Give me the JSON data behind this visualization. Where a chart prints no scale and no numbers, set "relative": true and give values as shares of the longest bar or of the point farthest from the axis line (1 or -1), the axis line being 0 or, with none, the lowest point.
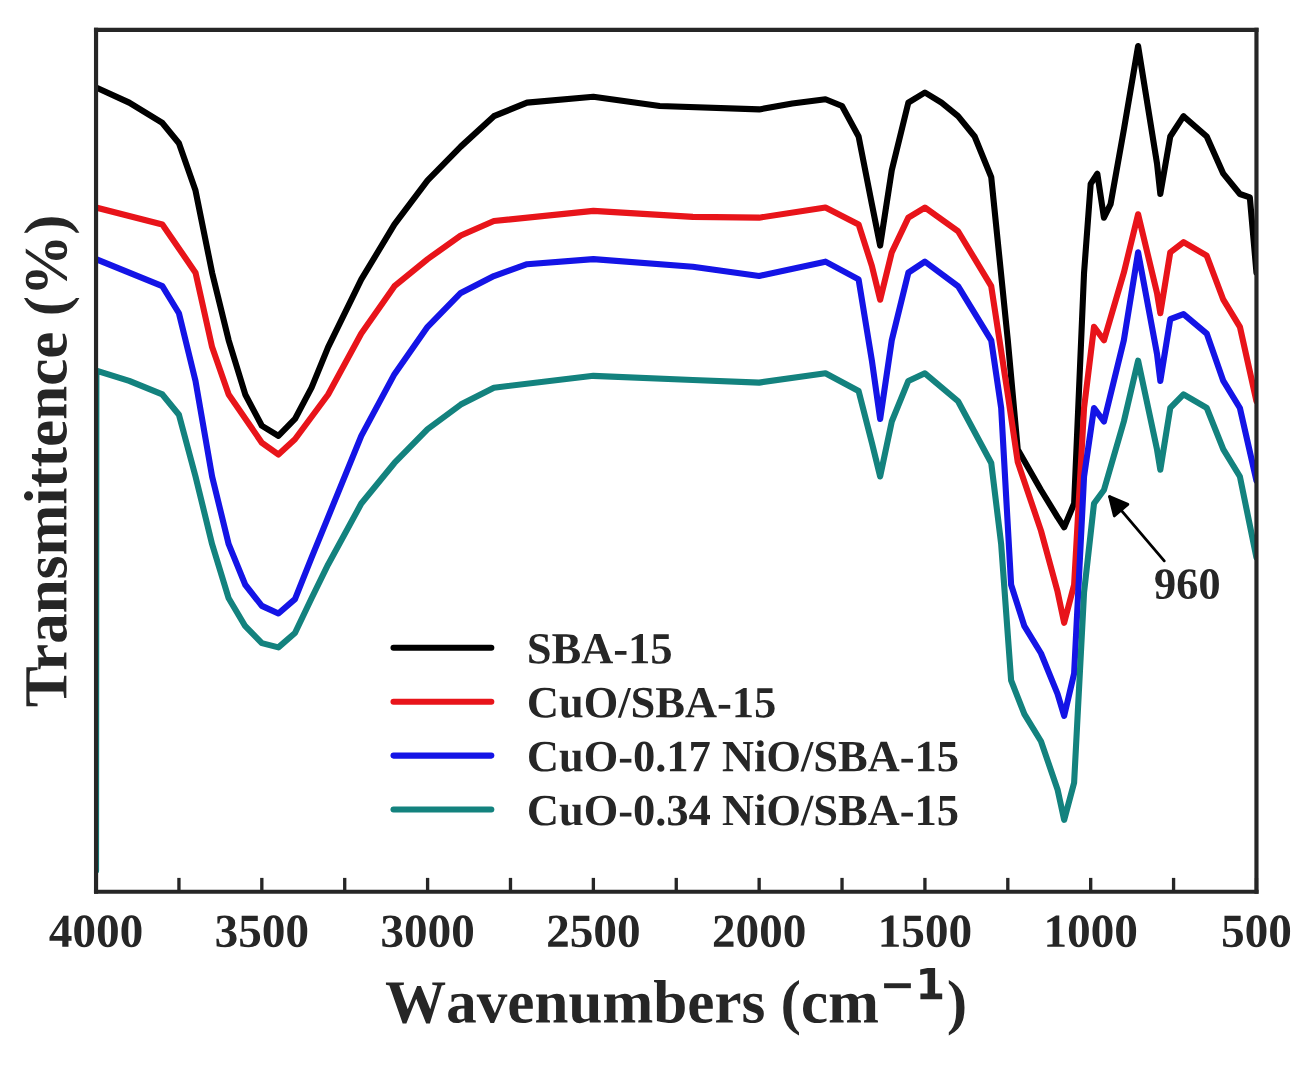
{
  "chart_data": {
    "type": "line",
    "xlabel": "Wavenumbers (cm$^{−1}$)",
    "ylabel": "Transmittence (%)",
    "relative": true,
    "tick_labels": "x",
    "grid": false,
    "legend": "bottom",
    "marker": "none",
    "line_style": "solid",
    "xlim": [
      4000,
      500
    ],
    "xticks": [
      4000,
      {
        "value": 3750,
        "label": null
      },
      3500,
      {
        "value": 3250,
        "label": null
      },
      3000,
      {
        "value": 2750,
        "label": null
      },
      2500,
      {
        "value": 2250,
        "label": null
      },
      2000,
      {
        "value": 1750,
        "label": null
      },
      1500,
      {
        "value": 1250,
        "label": null
      },
      1000,
      {
        "value": 750,
        "label": null
      },
      500
    ],
    "annotations": [
      {
        "text": "960",
        "x": 960,
        "y": 0.475
      }
    ],
    "series": [
      {
        "name": "SBA-15",
        "color": "#000000",
        "x": [
          4000,
          3900,
          3800,
          3750,
          3700,
          3650,
          3600,
          3550,
          3500,
          3450,
          3400,
          3350,
          3300,
          3200,
          3100,
          3000,
          2900,
          2800,
          2700,
          2500,
          2300,
          2000,
          1900,
          1800,
          1750,
          1700,
          1660,
          1635,
          1600,
          1550,
          1500,
          1450,
          1400,
          1350,
          1300,
          1250,
          1220,
          1150,
          1100,
          1080,
          1050,
          1020,
          1000,
          980,
          960,
          940,
          900,
          857,
          800,
          790,
          760,
          720,
          650,
          600,
          550,
          520,
          500
        ],
        "values": [
          0.951,
          0.933,
          0.909,
          0.885,
          0.829,
          0.732,
          0.652,
          0.588,
          0.551,
          0.539,
          0.559,
          0.596,
          0.644,
          0.724,
          0.789,
          0.841,
          0.881,
          0.917,
          0.933,
          0.94,
          0.929,
          0.925,
          0.932,
          0.937,
          0.929,
          0.893,
          0.813,
          0.764,
          0.853,
          0.933,
          0.945,
          0.933,
          0.917,
          0.893,
          0.845,
          0.652,
          0.523,
          0.475,
          0.443,
          0.431,
          0.459,
          0.732,
          0.837,
          0.849,
          0.797,
          0.813,
          0.901,
          1.0,
          0.861,
          0.825,
          0.893,
          0.917,
          0.893,
          0.849,
          0.825,
          0.821,
          0.732
        ]
      },
      {
        "name": "CuO/SBA-15",
        "color": "#e8141a",
        "x": [
          4000,
          3800,
          3700,
          3650,
          3600,
          3500,
          3450,
          3400,
          3300,
          3200,
          3100,
          3000,
          2900,
          2800,
          2500,
          2200,
          2000,
          1800,
          1700,
          1660,
          1635,
          1600,
          1550,
          1500,
          1400,
          1300,
          1250,
          1220,
          1150,
          1100,
          1080,
          1050,
          1020,
          990,
          960,
          900,
          857,
          800,
          790,
          760,
          720,
          650,
          600,
          550,
          500
        ],
        "values": [
          0.809,
          0.789,
          0.732,
          0.644,
          0.588,
          0.531,
          0.517,
          0.535,
          0.588,
          0.66,
          0.716,
          0.748,
          0.776,
          0.793,
          0.805,
          0.798,
          0.797,
          0.809,
          0.789,
          0.74,
          0.7,
          0.756,
          0.797,
          0.809,
          0.781,
          0.716,
          0.588,
          0.508,
          0.427,
          0.355,
          0.318,
          0.363,
          0.572,
          0.668,
          0.652,
          0.732,
          0.801,
          0.708,
          0.684,
          0.756,
          0.768,
          0.752,
          0.7,
          0.668,
          0.58
        ]
      },
      {
        "name": "CuO-0.17 NiO/SBA-15",
        "color": "#1414e6",
        "x": [
          4000,
          3800,
          3750,
          3700,
          3650,
          3600,
          3550,
          3500,
          3450,
          3400,
          3350,
          3300,
          3200,
          3100,
          3000,
          2900,
          2800,
          2700,
          2500,
          2200,
          2000,
          1800,
          1700,
          1660,
          1635,
          1600,
          1550,
          1500,
          1400,
          1300,
          1270,
          1240,
          1200,
          1150,
          1100,
          1080,
          1050,
          1020,
          990,
          960,
          900,
          857,
          800,
          790,
          760,
          720,
          650,
          600,
          550,
          500
        ],
        "values": [
          0.748,
          0.716,
          0.684,
          0.604,
          0.491,
          0.411,
          0.363,
          0.338,
          0.329,
          0.346,
          0.395,
          0.443,
          0.539,
          0.612,
          0.668,
          0.708,
          0.728,
          0.742,
          0.748,
          0.739,
          0.728,
          0.745,
          0.724,
          0.628,
          0.559,
          0.652,
          0.732,
          0.745,
          0.716,
          0.652,
          0.572,
          0.363,
          0.314,
          0.282,
          0.234,
          0.208,
          0.258,
          0.491,
          0.572,
          0.556,
          0.652,
          0.756,
          0.636,
          0.604,
          0.677,
          0.683,
          0.66,
          0.604,
          0.572,
          0.486
        ]
      },
      {
        "name": "CuO-0.34 NiO/SBA-15",
        "color": "#13827e",
        "x": [
          4000,
          3999,
          3900,
          3800,
          3750,
          3700,
          3650,
          3600,
          3550,
          3500,
          3450,
          3400,
          3350,
          3300,
          3200,
          3100,
          3000,
          2900,
          2800,
          2500,
          2200,
          2000,
          1800,
          1700,
          1660,
          1635,
          1600,
          1550,
          1500,
          1400,
          1300,
          1270,
          1240,
          1200,
          1150,
          1100,
          1080,
          1050,
          1020,
          990,
          960,
          900,
          857,
          800,
          790,
          760,
          720,
          650,
          600,
          550,
          500
        ],
        "values": [
          0.025,
          0.616,
          0.604,
          0.588,
          0.564,
          0.491,
          0.411,
          0.347,
          0.314,
          0.294,
          0.289,
          0.306,
          0.347,
          0.387,
          0.459,
          0.507,
          0.547,
          0.576,
          0.596,
          0.61,
          0.605,
          0.602,
          0.613,
          0.592,
          0.531,
          0.491,
          0.556,
          0.604,
          0.613,
          0.58,
          0.507,
          0.411,
          0.25,
          0.21,
          0.178,
          0.121,
          0.085,
          0.129,
          0.354,
          0.459,
          0.475,
          0.556,
          0.628,
          0.523,
          0.499,
          0.572,
          0.588,
          0.572,
          0.523,
          0.491,
          0.395
        ]
      }
    ]
  }
}
